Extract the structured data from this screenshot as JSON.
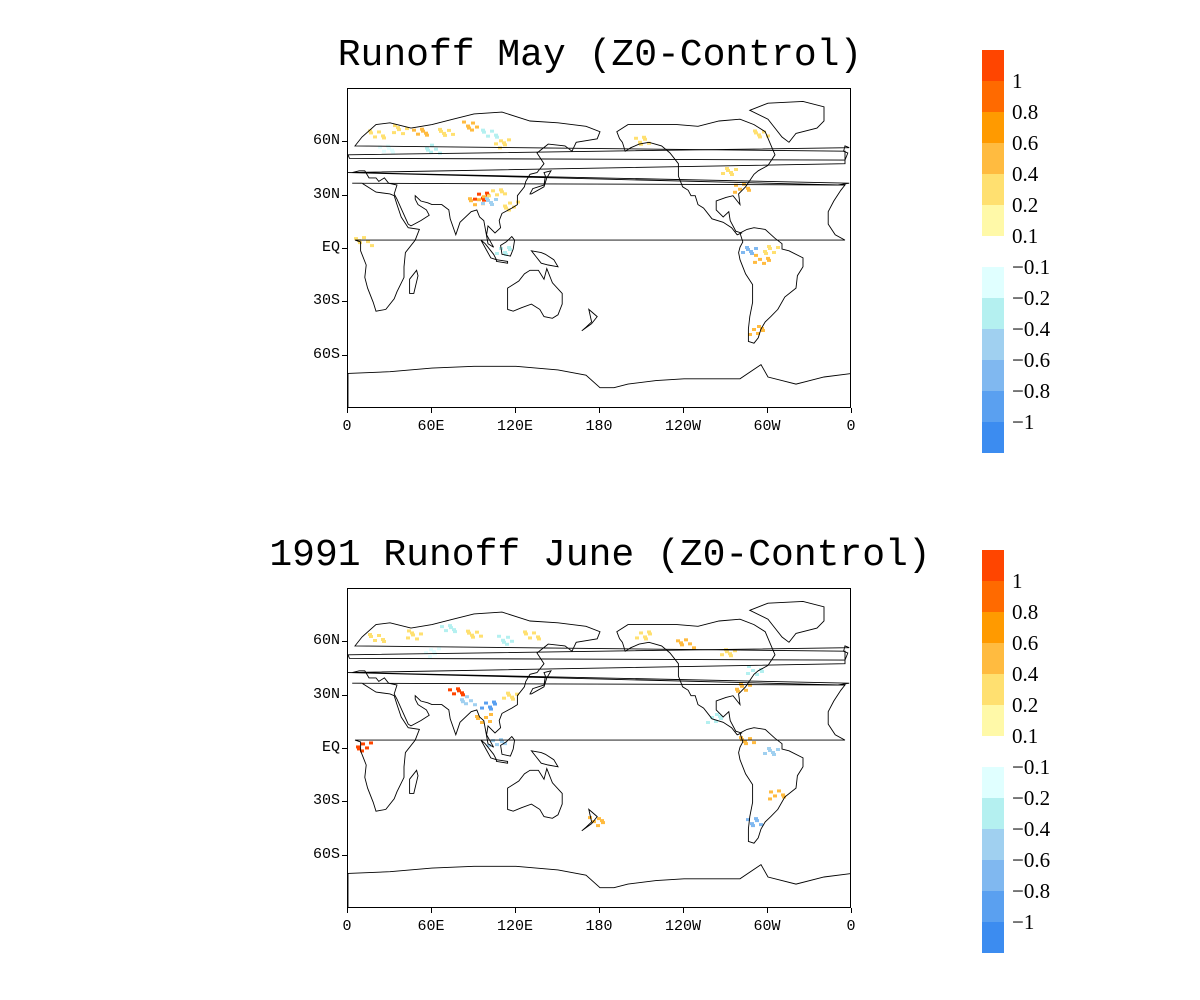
{
  "panels": [
    {
      "title": "Runoff May (Z0-Control)",
      "lat_labels": [
        "60N",
        "30N",
        "EQ",
        "30S",
        "60S"
      ],
      "lon_labels": [
        "0",
        "60E",
        "120E",
        "180",
        "120W",
        "60W",
        "0"
      ],
      "anomalies": [
        {
          "lon": 20,
          "lat": 65,
          "value": 0.3
        },
        {
          "lon": 35,
          "lat": 68,
          "value": 0.2
        },
        {
          "lon": 50,
          "lat": 66,
          "value": 0.4
        },
        {
          "lon": 70,
          "lat": 67,
          "value": 0.3
        },
        {
          "lon": 85,
          "lat": 70,
          "value": 0.4
        },
        {
          "lon": 100,
          "lat": 66,
          "value": -0.2
        },
        {
          "lon": 110,
          "lat": 60,
          "value": 0.2
        },
        {
          "lon": 25,
          "lat": 57,
          "value": -0.1
        },
        {
          "lon": 60,
          "lat": 57,
          "value": -0.2
        },
        {
          "lon": 95,
          "lat": 30,
          "value": 1.2
        },
        {
          "lon": 90,
          "lat": 28,
          "value": 0.4
        },
        {
          "lon": 100,
          "lat": 27,
          "value": -0.4
        },
        {
          "lon": 105,
          "lat": 33,
          "value": 0.3
        },
        {
          "lon": 115,
          "lat": 25,
          "value": 0.2
        },
        {
          "lon": 110,
          "lat": 0,
          "value": -0.3
        },
        {
          "lon": 10,
          "lat": 5,
          "value": 0.3
        },
        {
          "lon": -75,
          "lat": 0,
          "value": -0.6
        },
        {
          "lon": -65,
          "lat": -5,
          "value": 0.4
        },
        {
          "lon": -60,
          "lat": 0,
          "value": 0.2
        },
        {
          "lon": -70,
          "lat": -45,
          "value": 0.5
        },
        {
          "lon": -65,
          "lat": 65,
          "value": 0.2
        },
        {
          "lon": -90,
          "lat": 45,
          "value": 0.3
        },
        {
          "lon": -80,
          "lat": 35,
          "value": 0.4
        },
        {
          "lon": -150,
          "lat": 62,
          "value": 0.2
        }
      ]
    },
    {
      "title": "1991 Runoff June (Z0-Control)",
      "lat_labels": [
        "60N",
        "30N",
        "EQ",
        "30S",
        "60S"
      ],
      "lon_labels": [
        "0",
        "60E",
        "120E",
        "180",
        "120W",
        "60W",
        "0"
      ],
      "anomalies": [
        {
          "lon": 20,
          "lat": 63,
          "value": 0.3
        },
        {
          "lon": 45,
          "lat": 65,
          "value": 0.2
        },
        {
          "lon": 70,
          "lat": 68,
          "value": -0.2
        },
        {
          "lon": 90,
          "lat": 66,
          "value": 0.3
        },
        {
          "lon": 110,
          "lat": 62,
          "value": -0.2
        },
        {
          "lon": 130,
          "lat": 65,
          "value": 0.2
        },
        {
          "lon": 60,
          "lat": 55,
          "value": -0.1
        },
        {
          "lon": 75,
          "lat": 33,
          "value": 1.0
        },
        {
          "lon": 85,
          "lat": 28,
          "value": -0.4
        },
        {
          "lon": 100,
          "lat": 25,
          "value": -0.8
        },
        {
          "lon": 95,
          "lat": 18,
          "value": 0.4
        },
        {
          "lon": 115,
          "lat": 30,
          "value": 0.3
        },
        {
          "lon": 105,
          "lat": 5,
          "value": -0.4
        },
        {
          "lon": 10,
          "lat": 2,
          "value": 1.0
        },
        {
          "lon": -150,
          "lat": 65,
          "value": 0.3
        },
        {
          "lon": -120,
          "lat": 60,
          "value": 0.4
        },
        {
          "lon": -90,
          "lat": 55,
          "value": 0.3
        },
        {
          "lon": -70,
          "lat": 45,
          "value": -0.3
        },
        {
          "lon": -80,
          "lat": 35,
          "value": 0.4
        },
        {
          "lon": -100,
          "lat": 18,
          "value": -0.3
        },
        {
          "lon": -75,
          "lat": 5,
          "value": 0.5
        },
        {
          "lon": -60,
          "lat": 0,
          "value": -0.4
        },
        {
          "lon": -55,
          "lat": -25,
          "value": 0.4
        },
        {
          "lon": -70,
          "lat": -40,
          "value": -0.6
        },
        {
          "lon": 175,
          "lat": -40,
          "value": 0.4
        }
      ]
    }
  ],
  "colorbar": {
    "colors": [
      "#ff4500",
      "#ff6a00",
      "#ff9a00",
      "#ffbb40",
      "#ffe070",
      "#fff9a8",
      "#ffffff",
      "#e0ffff",
      "#b4f0f0",
      "#a0d0f0",
      "#80b8f0",
      "#5aa0f0",
      "#3c8cf0"
    ],
    "labels": [
      "1",
      "0.8",
      "0.6",
      "0.4",
      "0.2",
      "0.1",
      "−0.1",
      "−0.2",
      "−0.4",
      "−0.6",
      "−0.8",
      "−1"
    ]
  }
}
